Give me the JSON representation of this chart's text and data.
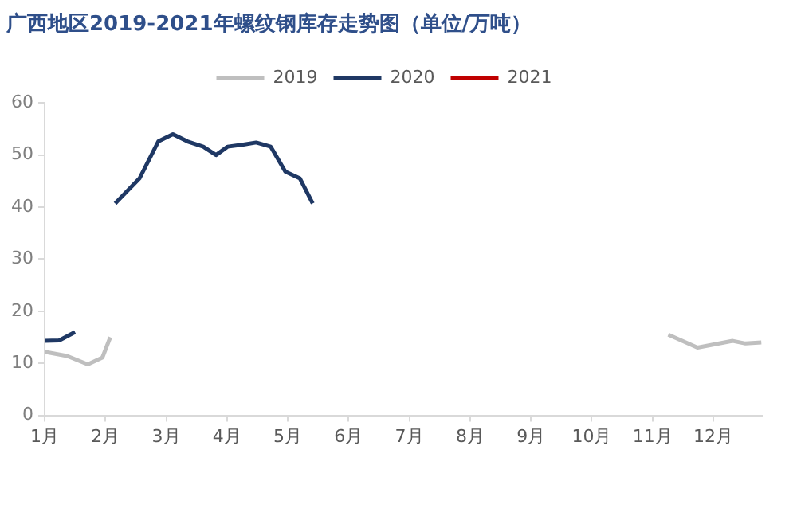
{
  "chart_data": {
    "type": "line",
    "title": "广西地区2019-2021年螺纹钢库存走势图（单位/万吨）",
    "xlim": [
      1,
      12.8
    ],
    "xticks": [
      {
        "value": 1,
        "label": "1月"
      },
      {
        "value": 2,
        "label": "2月"
      },
      {
        "value": 3,
        "label": "3月"
      },
      {
        "value": 4,
        "label": "4月"
      },
      {
        "value": 5,
        "label": "5月"
      },
      {
        "value": 6,
        "label": "6月"
      },
      {
        "value": 7,
        "label": "7月"
      },
      {
        "value": 8,
        "label": "8月"
      },
      {
        "value": 9,
        "label": "9月"
      },
      {
        "value": 10,
        "label": "10月"
      },
      {
        "value": 11,
        "label": "11月"
      },
      {
        "value": 12,
        "label": "12月"
      }
    ],
    "ylim": [
      0,
      60
    ],
    "yticks": [
      0,
      10,
      20,
      30,
      40,
      50,
      60
    ],
    "grid": false,
    "legend": "top",
    "marker": "none",
    "series": [
      {
        "name": "2019",
        "color": "#bfbfbf",
        "x": [
          1.0,
          1.37,
          1.71,
          1.95,
          2.08,
          6,
          11.26,
          11.74,
          12.32,
          12.53,
          12.79
        ],
        "values": [
          12.2,
          11.4,
          9.8,
          11.1,
          15,
          null,
          15.5,
          13,
          14.3,
          13.8,
          14
        ]
      },
      {
        "name": "2020",
        "color": "#1f3864",
        "x": [
          1.0,
          1.24,
          1.5,
          1.82,
          2.16,
          2.56,
          2.87,
          3.11,
          3.35,
          3.61,
          3.82,
          4.01,
          4.27,
          4.48,
          4.72,
          4.96,
          5.2,
          5.41
        ],
        "values": [
          14.3,
          14.4,
          16,
          null,
          40.7,
          45.5,
          52.6,
          54,
          52.6,
          51.6,
          50,
          51.6,
          52,
          52.4,
          51.6,
          46.8,
          45.5,
          40.7
        ]
      },
      {
        "name": "2021",
        "color": "#c00000"
      }
    ]
  }
}
